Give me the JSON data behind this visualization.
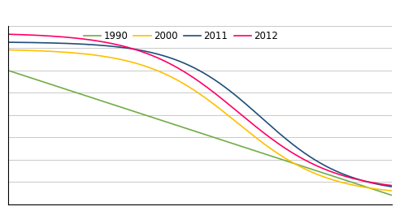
{
  "legend_labels": [
    "1990",
    "2000",
    "2011",
    "2012"
  ],
  "colors": {
    "1990": "#70AD47",
    "2000": "#FFC000",
    "2011": "#1F4E79",
    "2012": "#FF0066"
  },
  "background_color": "#FFFFFF",
  "grid_color": "#C0C0C0",
  "figsize": [
    4.92,
    2.65
  ],
  "dpi": 100,
  "legend_fontsize": 8.5
}
